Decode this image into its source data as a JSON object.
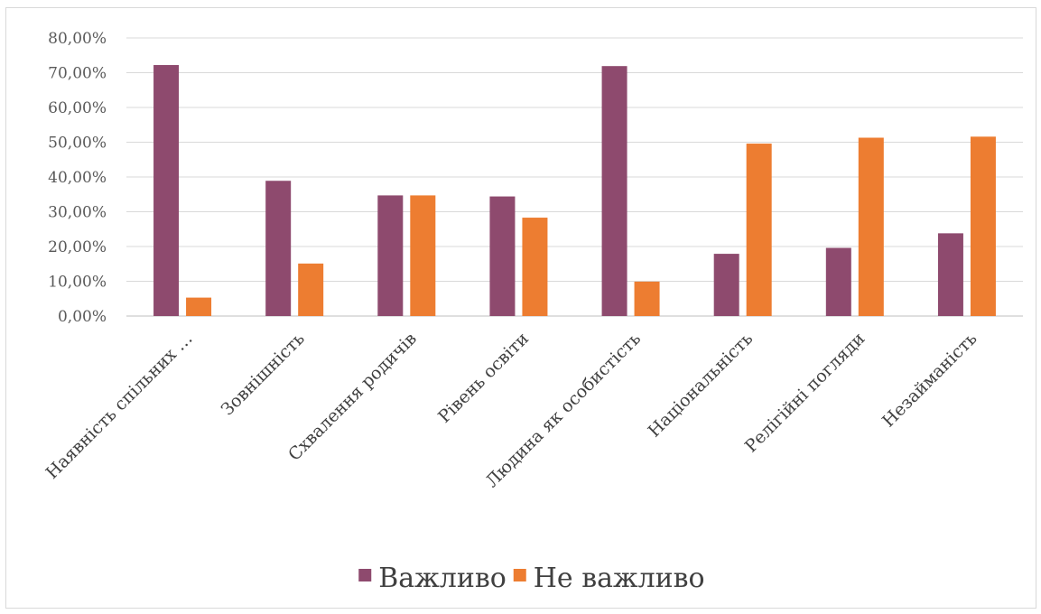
{
  "chart_data": {
    "type": "bar",
    "categories": [
      "Наявність спільних …",
      "Зовнішність",
      "Схвалення родичів",
      "Рівень освіти",
      "Людина як особистість",
      "Національність",
      "Релігійні погляди",
      "Незайманість"
    ],
    "series": [
      {
        "name": "Важливо",
        "color": "#8e4a6e",
        "values": [
          72.2,
          38.9,
          34.7,
          34.4,
          71.9,
          17.9,
          19.6,
          23.8
        ]
      },
      {
        "name": "Не важливо",
        "color": "#ed7d31",
        "values": [
          5.3,
          15.1,
          34.7,
          28.3,
          9.9,
          49.6,
          51.3,
          51.6
        ]
      }
    ],
    "yticks": [
      "0,00%",
      "10,00%",
      "20,00%",
      "30,00%",
      "40,00%",
      "50,00%",
      "60,00%",
      "70,00%",
      "80,00%"
    ],
    "ylim": [
      0,
      80
    ],
    "grid": true,
    "legend": "bottom",
    "title": "",
    "xlabel": "",
    "ylabel": ""
  }
}
